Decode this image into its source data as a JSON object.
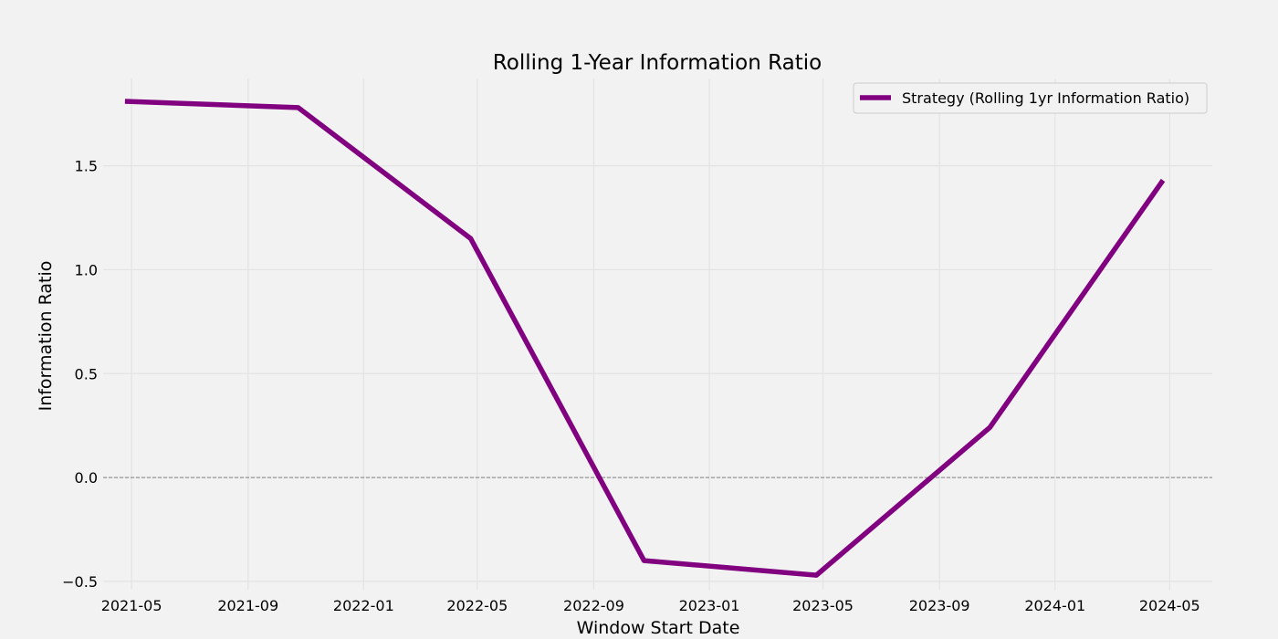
{
  "chart_data": {
    "type": "line",
    "title": "Rolling 1-Year Information Ratio",
    "xlabel": "Window Start Date",
    "ylabel": "Information Ratio",
    "x_ticks": [
      "2021-05",
      "2021-09",
      "2022-01",
      "2022-05",
      "2022-09",
      "2023-01",
      "2023-05",
      "2023-09",
      "2024-01",
      "2024-05"
    ],
    "y_ticks": [
      -0.5,
      0.0,
      0.5,
      1.0,
      1.5
    ],
    "y_tick_labels": [
      "−0.5",
      "0.0",
      "0.5",
      "1.0",
      "1.5"
    ],
    "ylim": [
      -0.54,
      1.92
    ],
    "xlim": [
      "2021-04-01",
      "2024-06-15"
    ],
    "grid": true,
    "reference_line": {
      "y": 0.0,
      "style": "dashed",
      "color": "#808080"
    },
    "legend": {
      "position": "top-right"
    },
    "series": [
      {
        "name": "Strategy (Rolling 1yr Information Ratio)",
        "color": "#800080",
        "x": [
          "2021-04-24",
          "2021-10-24",
          "2022-04-24",
          "2022-10-24",
          "2023-04-24",
          "2023-10-24",
          "2024-04-24"
        ],
        "y": [
          1.81,
          1.78,
          1.15,
          -0.4,
          -0.47,
          0.24,
          1.43
        ]
      }
    ]
  }
}
